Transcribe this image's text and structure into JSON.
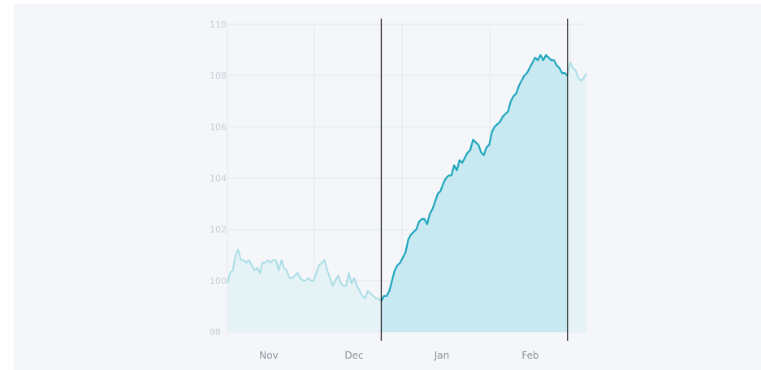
{
  "chart_data": {
    "type": "area",
    "title": "",
    "xlabel": "",
    "ylabel": "",
    "ylim": [
      98,
      110
    ],
    "y_ticks": [
      98,
      100,
      102,
      104,
      106,
      108,
      110
    ],
    "x_tick_labels": [
      "Nov",
      "Dec",
      "Jan",
      "Feb"
    ],
    "grid": true,
    "highlight_range": {
      "start_index": 57,
      "end_index": 126
    },
    "colors": {
      "line": "#1fa6bd",
      "line_faded": "#a9dde6",
      "area": "#bfe6ee",
      "area_faded": "#e6f3f6",
      "grid": "#e3e7ec",
      "marker_line": "#222222"
    },
    "series": [
      {
        "values": [
          99.9,
          100.3,
          100.4,
          101.0,
          101.2,
          100.8,
          100.8,
          100.7,
          100.8,
          100.6,
          100.4,
          100.5,
          100.3,
          100.7,
          100.7,
          100.8,
          100.7,
          100.8,
          100.8,
          100.4,
          100.8,
          100.5,
          100.4,
          100.1,
          100.1,
          100.2,
          100.3,
          100.1,
          100.0,
          100.0,
          100.1,
          100.0,
          100.0,
          100.3,
          100.6,
          100.7,
          100.8,
          100.4,
          100.1,
          99.8,
          100.0,
          100.2,
          99.9,
          99.8,
          99.8,
          100.3,
          99.9,
          100.1,
          99.8,
          99.6,
          99.4,
          99.3,
          99.6,
          99.5,
          99.4,
          99.3,
          99.3,
          99.2,
          99.4,
          99.4,
          99.6,
          100.0,
          100.4,
          100.6,
          100.7,
          100.9,
          101.1,
          101.6,
          101.8,
          101.9,
          102.0,
          102.3,
          102.4,
          102.4,
          102.2,
          102.6,
          102.8,
          103.1,
          103.4,
          103.5,
          103.8,
          104.0,
          104.1,
          104.1,
          104.5,
          104.3,
          104.7,
          104.6,
          104.8,
          105.0,
          105.1,
          105.5,
          105.4,
          105.3,
          105.0,
          104.9,
          105.2,
          105.3,
          105.8,
          106.0,
          106.1,
          106.2,
          106.4,
          106.5,
          106.6,
          107.0,
          107.2,
          107.3,
          107.6,
          107.8,
          108.0,
          108.1,
          108.3,
          108.5,
          108.7,
          108.6,
          108.8,
          108.6,
          108.8,
          108.7,
          108.6,
          108.6,
          108.4,
          108.3,
          108.1,
          108.1,
          108.0,
          108.5,
          108.3,
          108.2,
          107.9,
          107.8,
          107.9,
          108.1
        ]
      }
    ]
  }
}
